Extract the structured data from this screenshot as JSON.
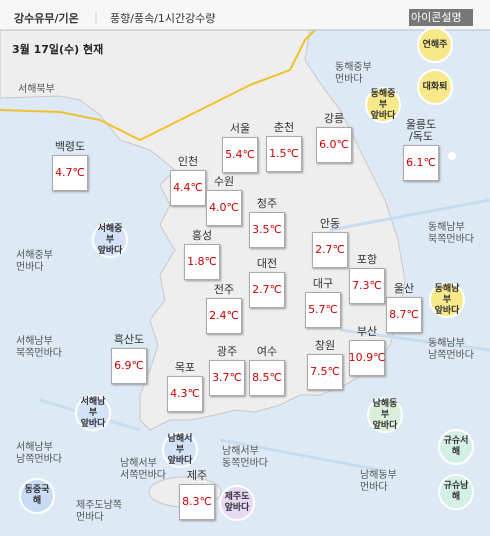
{
  "tabs": [
    "강수유무/기온",
    "풍향/풍속/1시간강수량"
  ],
  "legend_button": "아이콘설명",
  "date": "3월 17일(수) 현재",
  "stations": [
    {
      "name": "백령도",
      "temp": "4.7℃"
    },
    {
      "name": "서울",
      "temp": "5.4℃"
    },
    {
      "name": "춘천",
      "temp": "1.5℃"
    },
    {
      "name": "강릉",
      "temp": "6.0℃"
    },
    {
      "name": "울릉도\n/독도",
      "temp": "6.1℃"
    },
    {
      "name": "인천",
      "temp": "4.4℃"
    },
    {
      "name": "수원",
      "temp": "4.0℃"
    },
    {
      "name": "청주",
      "temp": "3.5℃"
    },
    {
      "name": "홍성",
      "temp": "1.8℃"
    },
    {
      "name": "안동",
      "temp": "2.7℃"
    },
    {
      "name": "대전",
      "temp": "2.7℃"
    },
    {
      "name": "전주",
      "temp": "2.4℃"
    },
    {
      "name": "대구",
      "temp": "5.7℃"
    },
    {
      "name": "포항",
      "temp": "7.3℃"
    },
    {
      "name": "울산",
      "temp": "8.7℃"
    },
    {
      "name": "흑산도",
      "temp": "6.9℃"
    },
    {
      "name": "목포",
      "temp": "4.3℃"
    },
    {
      "name": "광주",
      "temp": "3.7℃"
    },
    {
      "name": "여수",
      "temp": "8.5℃"
    },
    {
      "name": "창원",
      "temp": "7.5℃"
    },
    {
      "name": "부산",
      "temp": "10.9℃"
    },
    {
      "name": "제주",
      "temp": "8.3℃"
    }
  ],
  "sea_areas": [
    "서해북부",
    "동해중부\n먼바다",
    "서해중부\n먼바다",
    "서해남부\n북쪽먼바다",
    "서해남부\n남쪽먼바다",
    "남해서부\n서쪽먼바다",
    "남해서부\n동쪽먼바다",
    "제주도남쪽\n먼바다",
    "남해동부\n먼바다",
    "동해남부\n북쪽먼바다",
    "동해남부\n남쪽먼바다"
  ],
  "zone_badges": [
    "연해주",
    "대화퇴",
    "동해중부\n앞바다",
    "서해중부\n앞바다",
    "동해남부\n앞바다",
    "서해남부\n앞바다",
    "남해서부\n앞바다",
    "남해동부\n앞바다",
    "제주도\n앞바다",
    "동중국해",
    "규슈서해",
    "규슈남해"
  ]
}
